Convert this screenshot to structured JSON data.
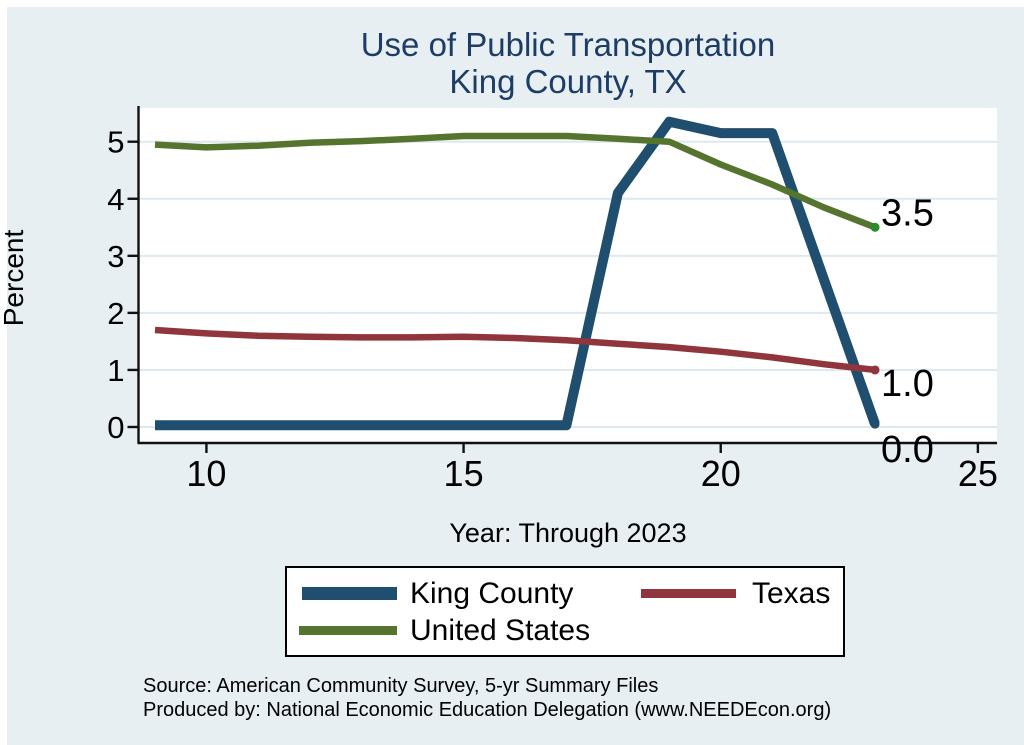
{
  "title": {
    "line1": "Use of Public Transportation",
    "line2": "King County, TX"
  },
  "colors": {
    "background": "#e8eff2",
    "plot_background": "#ffffff",
    "gridline": "#dde9ef",
    "axis_line": "#111111",
    "title_text": "#1e3d66",
    "king_county": "#1f4e6f",
    "texas": "#90353b",
    "united_states": "#55752f",
    "us_end_marker": "#2d8a2d"
  },
  "chart_data": {
    "type": "line",
    "title": "Use of Public Transportation — King County, TX",
    "xlabel": "Year: Through 2023",
    "ylabel": "Percent",
    "x": [
      9,
      10,
      11,
      12,
      13,
      14,
      15,
      16,
      17,
      18,
      19,
      20,
      21,
      22,
      23
    ],
    "x_ticks": [
      10,
      15,
      20,
      25
    ],
    "y_ticks": [
      0,
      1,
      2,
      3,
      4,
      5
    ],
    "xlim": [
      8.7,
      25.4
    ],
    "ylim": [
      -0.3,
      5.6
    ],
    "grid": "horizontal-only",
    "legend_position": "below-plot",
    "series": [
      {
        "name": "King County",
        "color": "#1f4e6f",
        "line_width": 10,
        "end_label": "0.0",
        "marker_color": "#1f4e6f",
        "values": [
          0.03,
          0.03,
          0.03,
          0.03,
          0.03,
          0.03,
          0.03,
          0.03,
          0.03,
          4.1,
          5.35,
          5.15,
          5.15,
          2.6,
          0.05
        ]
      },
      {
        "name": "Texas",
        "color": "#90353b",
        "line_width": 6.5,
        "end_label": "1.0",
        "marker_color": "#90353b",
        "values": [
          1.7,
          1.64,
          1.6,
          1.58,
          1.57,
          1.57,
          1.58,
          1.56,
          1.52,
          1.46,
          1.4,
          1.32,
          1.22,
          1.1,
          1.0
        ]
      },
      {
        "name": "United States",
        "color": "#55752f",
        "line_width": 6.5,
        "end_label": "3.5",
        "marker_color": "#2d8a2d",
        "values": [
          4.95,
          4.9,
          4.93,
          4.98,
          5.01,
          5.05,
          5.1,
          5.1,
          5.1,
          5.05,
          5.0,
          4.6,
          4.25,
          3.85,
          3.5
        ]
      }
    ]
  },
  "legend": {
    "items": [
      "King County",
      "Texas",
      "United States"
    ]
  },
  "footer": {
    "line1": "Source: American Community Survey, 5-yr Summary Files",
    "line2": "Produced by: National Economic Education Delegation (www.NEEDEcon.org)"
  }
}
